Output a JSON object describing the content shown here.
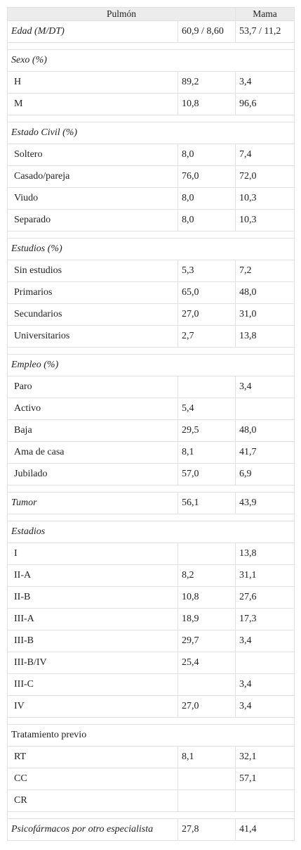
{
  "header": {
    "col_pulmon": "Pulmón",
    "col_mama": "Mama"
  },
  "rows": [
    {
      "type": "data",
      "label": "Edad (M/DT)",
      "pulmon": "60,9 / 8,60",
      "mama": "53,7 / 11,2",
      "italic": true
    },
    {
      "type": "spacer"
    },
    {
      "type": "section",
      "label": "Sexo (%)",
      "italic": true
    },
    {
      "type": "item",
      "label": "H",
      "pulmon": "89,2",
      "mama": "3,4"
    },
    {
      "type": "item",
      "label": "M",
      "pulmon": "10,8",
      "mama": "96,6"
    },
    {
      "type": "spacer"
    },
    {
      "type": "section",
      "label": "Estado Civil (%)",
      "italic": true
    },
    {
      "type": "item",
      "label": "Soltero",
      "pulmon": "8,0",
      "mama": "7,4"
    },
    {
      "type": "item",
      "label": "Casado/pareja",
      "pulmon": "76,0",
      "mama": "72,0"
    },
    {
      "type": "item",
      "label": "Viudo",
      "pulmon": "8,0",
      "mama": "10,3"
    },
    {
      "type": "item",
      "label": "Separado",
      "pulmon": "8,0",
      "mama": "10,3"
    },
    {
      "type": "spacer"
    },
    {
      "type": "section",
      "label": "Estudios (%)",
      "italic": true
    },
    {
      "type": "item",
      "label": "Sin estudios",
      "pulmon": "5,3",
      "mama": "7,2"
    },
    {
      "type": "item",
      "label": "Primarios",
      "pulmon": "65,0",
      "mama": "48,0"
    },
    {
      "type": "item",
      "label": "Secundarios",
      "pulmon": "27,0",
      "mama": "31,0"
    },
    {
      "type": "item",
      "label": "Universitarios",
      "pulmon": "2,7",
      "mama": "13,8"
    },
    {
      "type": "spacer"
    },
    {
      "type": "section",
      "label": "Empleo (%)",
      "italic": true
    },
    {
      "type": "item",
      "label": "Paro",
      "pulmon": "",
      "mama": "3,4"
    },
    {
      "type": "item",
      "label": "Activo",
      "pulmon": "5,4",
      "mama": ""
    },
    {
      "type": "item",
      "label": "Baja",
      "pulmon": "29,5",
      "mama": "48,0"
    },
    {
      "type": "item",
      "label": "Ama de casa",
      "pulmon": "8,1",
      "mama": "41,7"
    },
    {
      "type": "item",
      "label": "Jubilado",
      "pulmon": "57,0",
      "mama": "6,9"
    },
    {
      "type": "spacer"
    },
    {
      "type": "data",
      "label": "Tumor",
      "pulmon": "56,1",
      "mama": "43,9",
      "italic": true
    },
    {
      "type": "spacer"
    },
    {
      "type": "section",
      "label": "Estadios",
      "italic": true
    },
    {
      "type": "item",
      "label": "I",
      "pulmon": "",
      "mama": "13,8"
    },
    {
      "type": "item",
      "label": "II-A",
      "pulmon": "8,2",
      "mama": "31,1"
    },
    {
      "type": "item",
      "label": "II-B",
      "pulmon": "10,8",
      "mama": "27,6"
    },
    {
      "type": "item",
      "label": "III-A",
      "pulmon": "18,9",
      "mama": "17,3"
    },
    {
      "type": "item",
      "label": "III-B",
      "pulmon": "29,7",
      "mama": "3,4"
    },
    {
      "type": "item",
      "label": "III-B/IV",
      "pulmon": "25,4",
      "mama": ""
    },
    {
      "type": "item",
      "label": "III-C",
      "pulmon": "",
      "mama": "3,4"
    },
    {
      "type": "item",
      "label": "IV",
      "pulmon": "27,0",
      "mama": "3,4"
    },
    {
      "type": "spacer"
    },
    {
      "type": "section",
      "label": "Tratamiento previo",
      "italic": false
    },
    {
      "type": "item",
      "label": "RT",
      "pulmon": "8,1",
      "mama": "32,1"
    },
    {
      "type": "item",
      "label": "CC",
      "pulmon": "",
      "mama": "57,1"
    },
    {
      "type": "item",
      "label": "CR",
      "pulmon": "",
      "mama": ""
    },
    {
      "type": "spacer"
    },
    {
      "type": "data",
      "label": "Psicofármacos por otro especialista",
      "pulmon": "27,8",
      "mama": "41,4",
      "italic": true
    }
  ]
}
